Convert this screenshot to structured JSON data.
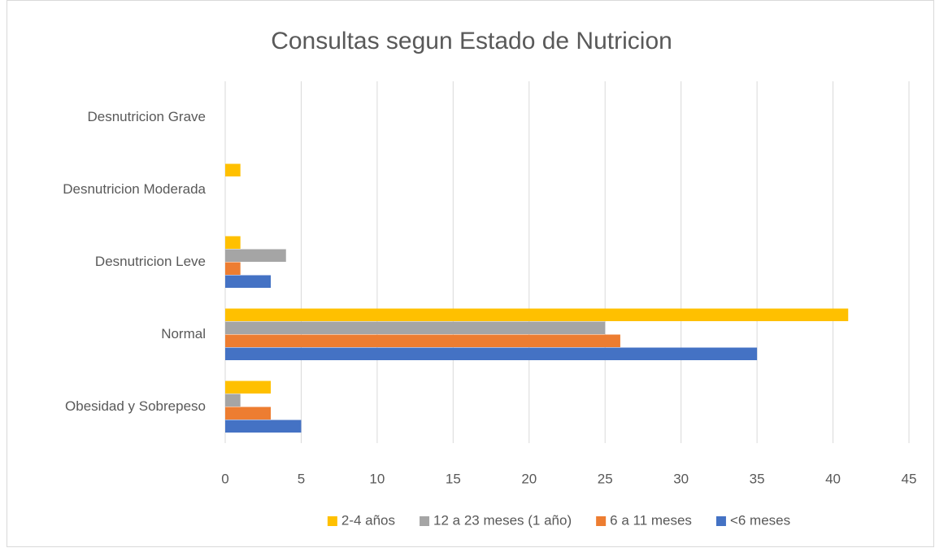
{
  "chart_data": {
    "type": "hbar",
    "title": "Consultas segun Estado de Nutricion",
    "categories": [
      "Desnutricion Grave",
      "Desnutricion Moderada",
      "Desnutricion Leve",
      "Normal",
      "Obesidad y Sobrepeso"
    ],
    "series": [
      {
        "name": "2-4 años",
        "color": "#ffc000",
        "values": [
          0,
          1,
          1,
          41,
          3
        ]
      },
      {
        "name": "12 a 23 meses (1 año)",
        "color": "#a5a5a5",
        "values": [
          0,
          0,
          4,
          25,
          1
        ]
      },
      {
        "name": "6 a 11 meses",
        "color": "#ed7d31",
        "values": [
          0,
          0,
          1,
          26,
          3
        ]
      },
      {
        "name": "<6 meses",
        "color": "#4472c4",
        "values": [
          0,
          0,
          3,
          35,
          5
        ]
      }
    ],
    "xlim": [
      0,
      45
    ],
    "xticks": [
      0,
      5,
      10,
      15,
      20,
      25,
      30,
      35,
      40,
      45
    ],
    "grid": true,
    "legend": "bottom"
  }
}
